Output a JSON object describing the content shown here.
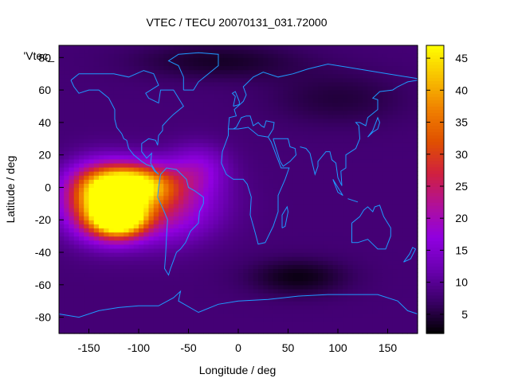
{
  "chart_data": {
    "type": "heatmap",
    "title": "VTEC / TECU 20070131_031.72000",
    "xlabel": "Longitude / deg",
    "ylabel": "Latitude / deg",
    "key_label": "'Vtec_",
    "xlim": [
      -180,
      180
    ],
    "ylim": [
      -90,
      87.5
    ],
    "x_ticks": [
      -150,
      -100,
      -50,
      0,
      50,
      100,
      150
    ],
    "y_ticks": [
      -80,
      -60,
      -40,
      -20,
      0,
      20,
      40,
      60,
      80
    ],
    "colorbar": {
      "range": [
        2,
        47
      ],
      "ticks": [
        5,
        10,
        15,
        20,
        25,
        30,
        35,
        40,
        45
      ],
      "palette": [
        "#000000",
        "#3a0066",
        "#6a00b0",
        "#9000e0",
        "#b0109a",
        "#d02040",
        "#e05000",
        "#f08000",
        "#f8c000",
        "#ffff00"
      ]
    },
    "field": {
      "background_tec": 8,
      "features": [
        {
          "lon": -120,
          "lat": -18,
          "sigma_lon": 18,
          "sigma_lat": 8,
          "tec": 46
        },
        {
          "lon": -110,
          "lat": 2,
          "sigma_lon": 28,
          "sigma_lat": 8,
          "tec": 36
        },
        {
          "lon": -140,
          "lat": -8,
          "sigma_lon": 25,
          "sigma_lat": 14,
          "tec": 28
        },
        {
          "lon": -85,
          "lat": -10,
          "sigma_lon": 40,
          "sigma_lat": 15,
          "tec": 20
        },
        {
          "lon": -40,
          "lat": 12,
          "sigma_lon": 20,
          "sigma_lat": 10,
          "tec": 10
        },
        {
          "lon": 60,
          "lat": -55,
          "sigma_lon": 35,
          "sigma_lat": 8,
          "tec": -5
        },
        {
          "lon": -20,
          "lat": 78,
          "sigma_lon": 60,
          "sigma_lat": 8,
          "tec": -4
        },
        {
          "lon": 100,
          "lat": 55,
          "sigma_lon": 50,
          "sigma_lat": 12,
          "tec": -3
        }
      ]
    }
  }
}
